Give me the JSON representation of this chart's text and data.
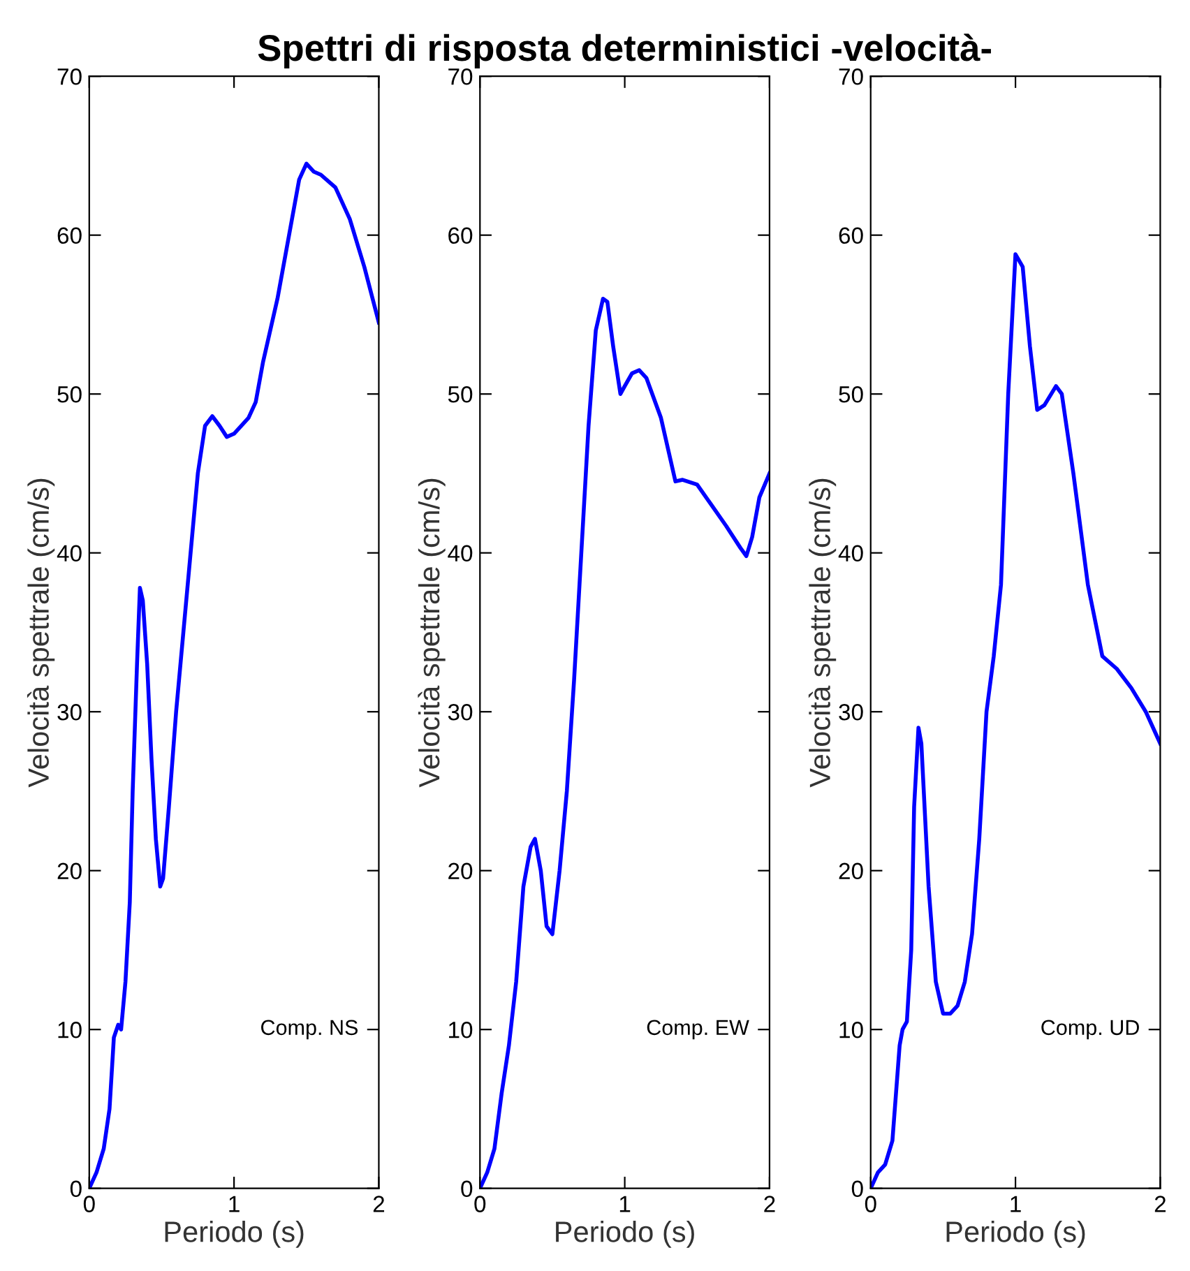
{
  "chart_data": [
    {
      "type": "line",
      "xlabel": "Periodo (s)",
      "ylabel": "Velocità spettrale (cm/s)",
      "annotations": [
        "Comp. NS"
      ],
      "xlim": [
        0,
        2
      ],
      "ylim": [
        0,
        70
      ],
      "xticks": [
        0,
        1,
        2
      ],
      "yticks": [
        0,
        10,
        20,
        30,
        40,
        50,
        60,
        70
      ],
      "grid": false,
      "legend": false,
      "series": [
        {
          "color": "#0000ff",
          "x": [
            0,
            0.05,
            0.1,
            0.14,
            0.17,
            0.2,
            0.22,
            0.25,
            0.28,
            0.3,
            0.33,
            0.35,
            0.37,
            0.4,
            0.43,
            0.46,
            0.49,
            0.51,
            0.55,
            0.6,
            0.65,
            0.7,
            0.75,
            0.8,
            0.85,
            0.9,
            0.95,
            1.0,
            1.1,
            1.15,
            1.2,
            1.3,
            1.4,
            1.45,
            1.5,
            1.55,
            1.6,
            1.7,
            1.8,
            1.9,
            2.0
          ],
          "values": [
            0,
            1,
            2.5,
            5,
            9.5,
            10.3,
            10,
            13,
            18,
            25,
            33,
            37.8,
            37,
            33,
            27,
            22,
            19,
            19.5,
            24,
            30,
            35,
            40,
            45,
            48,
            48.6,
            48,
            47.3,
            47.5,
            48.5,
            49.5,
            52,
            56,
            61,
            63.5,
            64.5,
            64,
            63.8,
            63,
            61,
            58,
            54.5
          ]
        }
      ]
    },
    {
      "type": "line",
      "title": "Spettri di risposta deterministici -velocità-",
      "xlabel": "Periodo (s)",
      "ylabel": "Velocità spettrale (cm/s)",
      "annotations": [
        "Comp. EW"
      ],
      "xlim": [
        0,
        2
      ],
      "ylim": [
        0,
        70
      ],
      "xticks": [
        0,
        1,
        2
      ],
      "yticks": [
        0,
        10,
        20,
        30,
        40,
        50,
        60,
        70
      ],
      "grid": false,
      "legend": false,
      "series": [
        {
          "color": "#0000ff",
          "x": [
            0,
            0.05,
            0.1,
            0.15,
            0.2,
            0.25,
            0.3,
            0.35,
            0.38,
            0.42,
            0.46,
            0.5,
            0.55,
            0.6,
            0.65,
            0.7,
            0.75,
            0.8,
            0.85,
            0.88,
            0.92,
            0.97,
            1.0,
            1.05,
            1.1,
            1.15,
            1.25,
            1.35,
            1.4,
            1.5,
            1.6,
            1.7,
            1.8,
            1.84,
            1.88,
            1.93,
            2.0
          ],
          "values": [
            0,
            1,
            2.5,
            6,
            9,
            13,
            19,
            21.5,
            22,
            20,
            16.5,
            16,
            20,
            25,
            32,
            40,
            48,
            54,
            56,
            55.8,
            53,
            50,
            50.5,
            51.3,
            51.5,
            51,
            48.5,
            44.5,
            44.6,
            44.3,
            43,
            41.7,
            40.3,
            39.8,
            41,
            43.5,
            45
          ]
        }
      ]
    },
    {
      "type": "line",
      "xlabel": "Periodo (s)",
      "ylabel": "Velocità spettrale (cm/s)",
      "annotations": [
        "Comp. UD"
      ],
      "xlim": [
        0,
        2
      ],
      "ylim": [
        0,
        70
      ],
      "xticks": [
        0,
        1,
        2
      ],
      "yticks": [
        0,
        10,
        20,
        30,
        40,
        50,
        60,
        70
      ],
      "grid": false,
      "legend": false,
      "series": [
        {
          "color": "#0000ff",
          "x": [
            0,
            0.05,
            0.1,
            0.15,
            0.2,
            0.22,
            0.25,
            0.28,
            0.3,
            0.33,
            0.35,
            0.4,
            0.45,
            0.5,
            0.55,
            0.6,
            0.65,
            0.7,
            0.75,
            0.8,
            0.85,
            0.9,
            0.95,
            1.0,
            1.05,
            1.1,
            1.15,
            1.2,
            1.28,
            1.32,
            1.4,
            1.5,
            1.6,
            1.7,
            1.8,
            1.9,
            2.0
          ],
          "values": [
            0,
            1,
            1.5,
            3,
            9,
            10,
            10.5,
            15,
            24,
            29,
            28,
            19,
            13,
            11,
            11,
            11.5,
            13,
            16,
            22,
            30,
            33.5,
            38,
            50,
            58.8,
            58,
            53,
            49,
            49.3,
            50.5,
            50,
            45,
            38,
            33.5,
            32.7,
            31.5,
            30,
            28
          ]
        }
      ]
    }
  ]
}
